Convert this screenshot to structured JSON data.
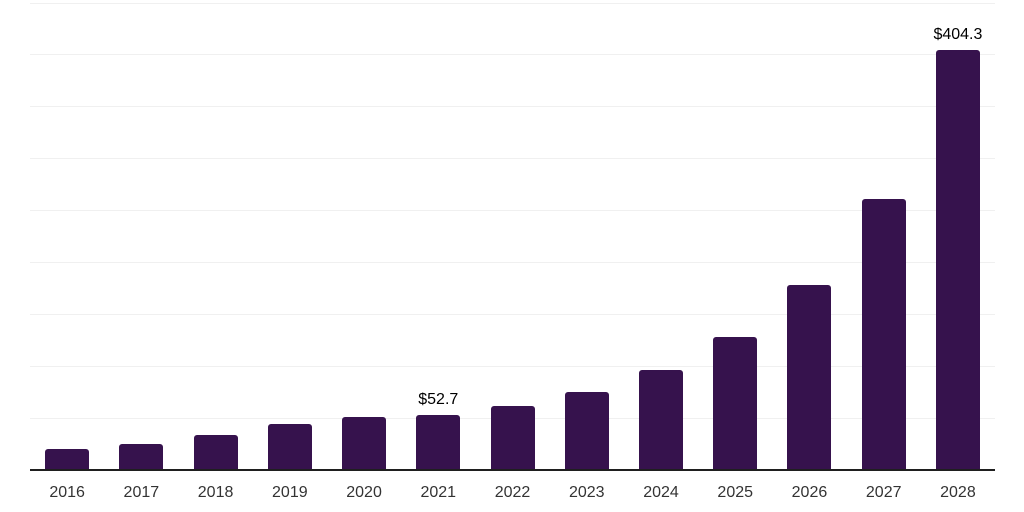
{
  "chart_data": {
    "type": "bar",
    "title": "",
    "xlabel": "",
    "ylabel": "",
    "categories": [
      "2016",
      "2017",
      "2018",
      "2019",
      "2020",
      "2021",
      "2022",
      "2023",
      "2024",
      "2025",
      "2026",
      "2027",
      "2028"
    ],
    "values": [
      20.5,
      25.4,
      34.0,
      44.2,
      50.9,
      52.7,
      62.0,
      75.3,
      96.2,
      128.5,
      177.8,
      260.7,
      404.3
    ],
    "annotations": [
      {
        "index": 5,
        "text": "$52.7"
      },
      {
        "index": 12,
        "text": "$404.3"
      }
    ],
    "ylim": [
      0,
      450
    ],
    "gridline_step": 50,
    "grid": true,
    "legend": false,
    "y_tick_labels_visible": false,
    "colors": {
      "bar": "#36124D",
      "axis_line": "#1F1F1F",
      "gridline": "#F0F0F0",
      "value_label": "#000000",
      "x_tick_label": "#333333",
      "background": "#FFFFFF"
    }
  }
}
